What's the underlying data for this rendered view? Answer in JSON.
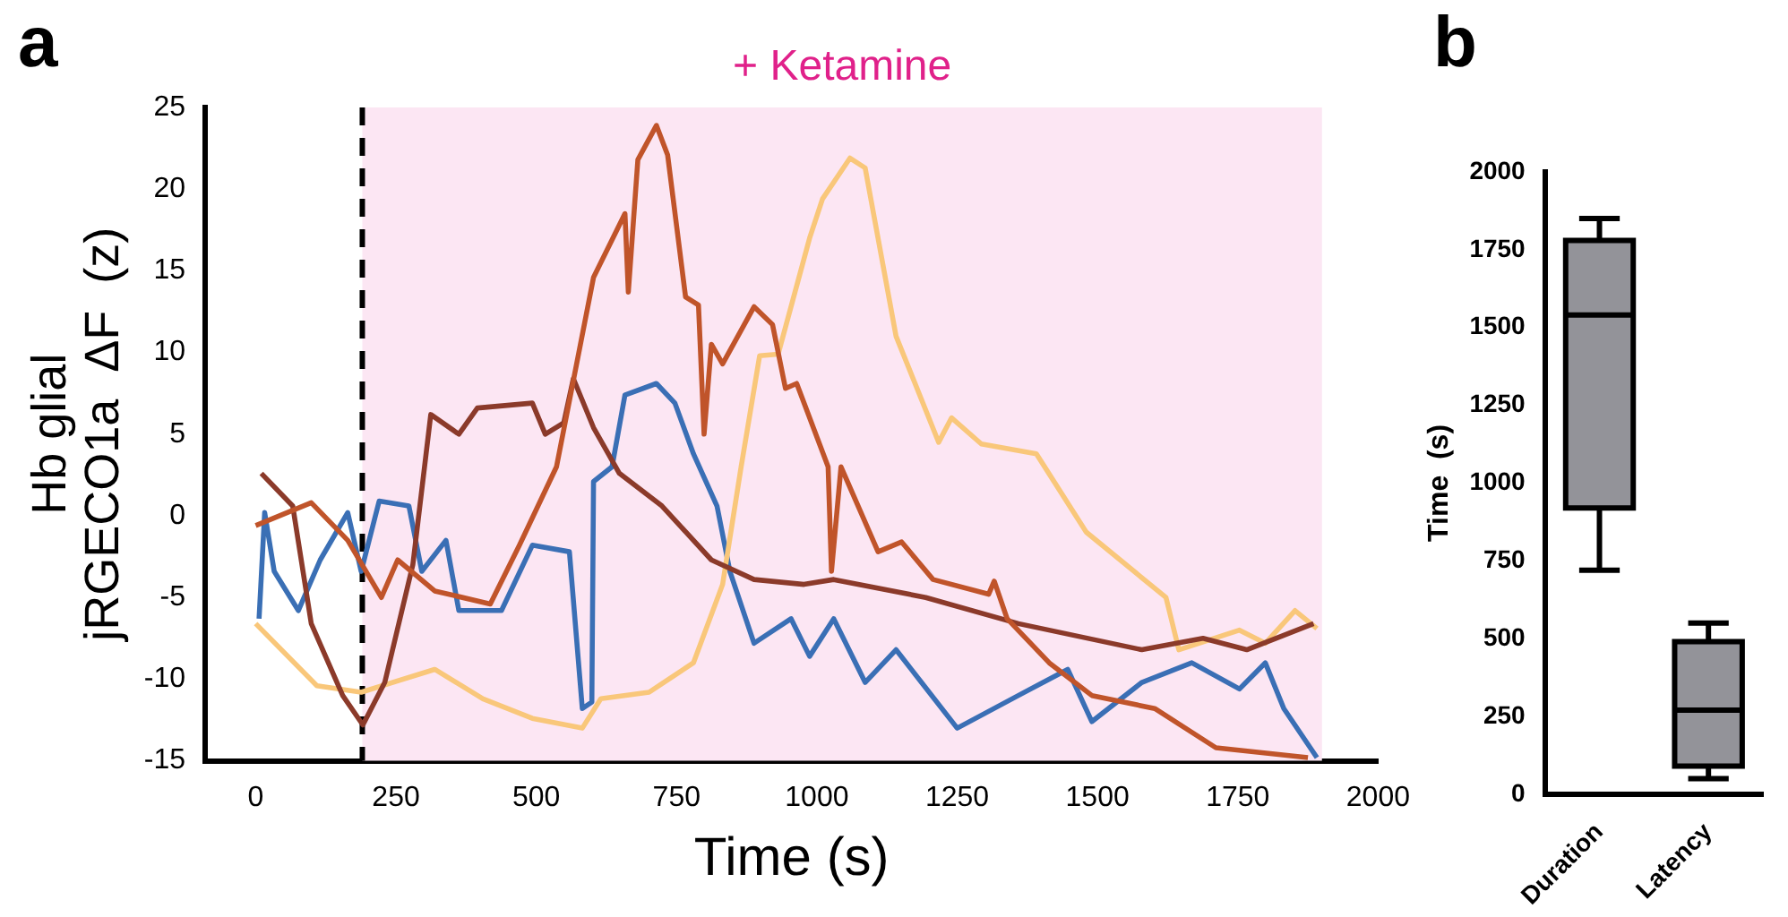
{
  "chart_data": [
    {
      "type": "line",
      "annotations": [
        "a"
      ],
      "xlabel": "Time (s)",
      "ylabel": "Hb glial\njRGECO1a  ΔF  (z)",
      "xlim": [
        -90,
        2000
      ],
      "xticks": [
        0,
        250,
        500,
        750,
        1000,
        1250,
        1500,
        1750,
        2000
      ],
      "ylim": [
        -15,
        25
      ],
      "yticks": [
        -15,
        -10,
        -5,
        0,
        5,
        10,
        15,
        20,
        25
      ],
      "grid": false,
      "legend": false,
      "marker": "none",
      "line_style": "solid",
      "ref_lines": [
        {
          "axis": "x",
          "value": 190,
          "color": "#000000",
          "line_style": "dashed"
        }
      ],
      "bands": [
        {
          "axis": "x",
          "from": 190,
          "to": 1900,
          "label": "+ Ketamine",
          "color": "#fce6f3"
        }
      ],
      "series": [
        {
          "color": "#c0542a",
          "x": [
            0,
            99,
            164,
            224,
            253,
            319,
            418,
            470,
            536,
            602,
            658,
            664,
            681,
            714,
            734,
            766,
            789,
            799,
            812,
            832,
            888,
            921,
            944,
            964,
            1020,
            1026,
            1043,
            1109,
            1151,
            1207,
            1306,
            1316,
            1339,
            1414,
            1490,
            1602,
            1711,
            1875
          ],
          "values": [
            -0.6,
            0.8,
            -1.5,
            -5,
            -2.7,
            -4.6,
            -5.4,
            -1.8,
            3,
            14.6,
            18.5,
            13.7,
            21.8,
            23.9,
            22.1,
            13.4,
            12.9,
            5,
            10.5,
            9.3,
            12.8,
            11.7,
            7.8,
            8.1,
            3,
            -3.4,
            3,
            -2.2,
            -1.6,
            -3.9,
            -4.8,
            -4,
            -6.3,
            -9,
            -11,
            -11.8,
            -14.2,
            -14.8
          ]
        },
        {
          "color": "#8b3a2a",
          "x": [
            10,
            66,
            99,
            155,
            191,
            230,
            280,
            312,
            362,
            395,
            493,
            516,
            549,
            566,
            602,
            648,
            724,
            812,
            888,
            977,
            1030,
            1194,
            1359,
            1579,
            1688,
            1766,
            1885
          ],
          "values": [
            2.6,
            0.6,
            -6.6,
            -11,
            -12.8,
            -10.2,
            -3,
            6.2,
            5,
            6.6,
            6.9,
            5,
            5.7,
            8.4,
            5.4,
            2.6,
            0.6,
            -2.7,
            -3.9,
            -4.2,
            -3.9,
            -5,
            -6.6,
            -8.2,
            -7.5,
            -8.2,
            -6.6
          ]
        },
        {
          "color": "#f9c77a",
          "x": [
            0,
            109,
            188,
            319,
            405,
            493,
            582,
            615,
            701,
            780,
            832,
            865,
            898,
            931,
            987,
            1010,
            1059,
            1086,
            1141,
            1217,
            1240,
            1293,
            1391,
            1480,
            1622,
            1645,
            1753,
            1799,
            1852,
            1891
          ],
          "values": [
            -6.6,
            -10.4,
            -10.8,
            -9.4,
            -11.2,
            -12.4,
            -13,
            -11.2,
            -10.8,
            -9,
            -4.2,
            3,
            9.8,
            9.9,
            17,
            19.4,
            21.9,
            21.3,
            11,
            4.5,
            6,
            4.4,
            3.8,
            -1,
            -5,
            -8.2,
            -7,
            -7.8,
            -5.8,
            -6.9
          ]
        },
        {
          "color": "#3a6fb5",
          "x": [
            6,
            16,
            33,
            76,
            115,
            164,
            188,
            220,
            273,
            296,
            339,
            362,
            438,
            493,
            559,
            582,
            599,
            602,
            635,
            658,
            714,
            747,
            780,
            822,
            845,
            888,
            954,
            987,
            1030,
            1086,
            1141,
            1250,
            1359,
            1447,
            1490,
            1579,
            1668,
            1753,
            1799,
            1832,
            1891
          ],
          "values": [
            -6.3,
            0.2,
            -3.4,
            -5.8,
            -2.7,
            0.2,
            -3.4,
            0.9,
            0.6,
            -3.4,
            -1.5,
            -5.8,
            -5.8,
            -1.8,
            -2.2,
            -11.8,
            -11.4,
            2.1,
            3,
            7.4,
            8.1,
            6.9,
            3.8,
            0.6,
            -3.4,
            -7.8,
            -6.3,
            -8.6,
            -6.3,
            -10.2,
            -8.2,
            -13,
            -11,
            -9.4,
            -12.6,
            -10.2,
            -9,
            -10.6,
            -9,
            -11.8,
            -14.8
          ]
        }
      ]
    },
    {
      "type": "box",
      "annotations": [
        "b"
      ],
      "ylabel": "Time  (s)",
      "categories": [
        "Duration",
        "Latency"
      ],
      "ylim": [
        0,
        2000
      ],
      "yticks": [
        0,
        250,
        500,
        750,
        1000,
        1250,
        1500,
        1750,
        2000
      ],
      "grid": false,
      "legend": false,
      "series": [
        {
          "color": "#939399",
          "boxes": [
            {
              "low": 720,
              "q1": 920,
              "median": 1540,
              "q3": 1780,
              "high": 1850
            },
            {
              "low": 50,
              "q1": 90,
              "median": 270,
              "q3": 490,
              "high": 550
            }
          ]
        }
      ]
    }
  ]
}
